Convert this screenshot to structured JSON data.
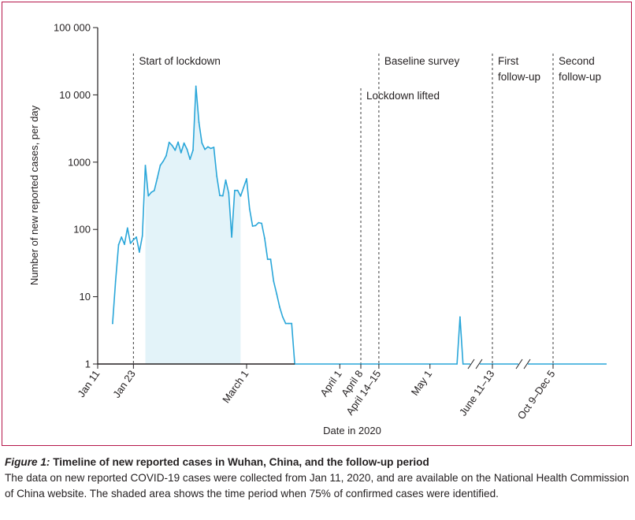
{
  "chart_data": {
    "type": "area",
    "xlabel": "Date in 2020",
    "ylabel": "Number of new reported cases, per day",
    "y_scale": "log",
    "ylim": [
      1,
      100000
    ],
    "y_ticks": [
      {
        "value": 1,
        "label": "1"
      },
      {
        "value": 10,
        "label": "10"
      },
      {
        "value": 100,
        "label": "100"
      },
      {
        "value": 1000,
        "label": "1000"
      },
      {
        "value": 10000,
        "label": "10 000"
      },
      {
        "value": 100000,
        "label": "100 000"
      }
    ],
    "x_ticks": [
      {
        "date": "2020-01-11",
        "label": "Jan 11"
      },
      {
        "date": "2020-01-23",
        "label": "Jan 23"
      },
      {
        "date": "2020-03-01",
        "label": "March 1"
      },
      {
        "date": "2020-04-01",
        "label": "April 1"
      },
      {
        "date": "2020-04-08",
        "label": "April 8"
      },
      {
        "date": "2020-04-14",
        "label": "April 14–15"
      },
      {
        "date": "2020-05-01",
        "label": "May 1"
      },
      {
        "date": "2020-06-11",
        "label": "June 11–13"
      },
      {
        "date": "2020-10-09",
        "label": "Oct 9–Dec 5"
      }
    ],
    "axis_breaks": [
      "2020-05-16",
      "2020-06-30"
    ],
    "shaded_period": {
      "start": "2020-01-27",
      "end": "2020-02-28",
      "meaning": "75% of confirmed cases identified"
    },
    "annotations": [
      {
        "date": "2020-01-23",
        "lines": [
          "Start of lockdown"
        ]
      },
      {
        "date": "2020-04-08",
        "lines": [
          "Lockdown lifted"
        ]
      },
      {
        "date": "2020-04-14",
        "lines": [
          "Baseline survey"
        ]
      },
      {
        "date": "2020-06-11",
        "lines": [
          "First",
          "follow-up"
        ]
      },
      {
        "date": "2020-10-09",
        "lines": [
          "Second",
          "follow-up"
        ]
      }
    ],
    "series": [
      {
        "color": "#29a6d9",
        "fill_color": "#e3f3f9",
        "points": [
          [
            "2020-01-16",
            4
          ],
          [
            "2020-01-17",
            17
          ],
          [
            "2020-01-18",
            59
          ],
          [
            "2020-01-19",
            77
          ],
          [
            "2020-01-20",
            60
          ],
          [
            "2020-01-21",
            105
          ],
          [
            "2020-01-22",
            62
          ],
          [
            "2020-01-23",
            70
          ],
          [
            "2020-01-24",
            77
          ],
          [
            "2020-01-25",
            46
          ],
          [
            "2020-01-26",
            80
          ],
          [
            "2020-01-27",
            892
          ],
          [
            "2020-01-28",
            315
          ],
          [
            "2020-01-29",
            356
          ],
          [
            "2020-01-30",
            378
          ],
          [
            "2020-01-31",
            576
          ],
          [
            "2020-02-01",
            894
          ],
          [
            "2020-02-02",
            1033
          ],
          [
            "2020-02-03",
            1242
          ],
          [
            "2020-02-04",
            1967
          ],
          [
            "2020-02-05",
            1766
          ],
          [
            "2020-02-06",
            1501
          ],
          [
            "2020-02-07",
            1985
          ],
          [
            "2020-02-08",
            1379
          ],
          [
            "2020-02-09",
            1920
          ],
          [
            "2020-02-10",
            1552
          ],
          [
            "2020-02-11",
            1104
          ],
          [
            "2020-02-12",
            1508
          ],
          [
            "2020-02-13",
            13436
          ],
          [
            "2020-02-14",
            3910
          ],
          [
            "2020-02-15",
            1923
          ],
          [
            "2020-02-16",
            1548
          ],
          [
            "2020-02-17",
            1690
          ],
          [
            "2020-02-18",
            1600
          ],
          [
            "2020-02-19",
            1660
          ],
          [
            "2020-02-20",
            615
          ],
          [
            "2020-02-21",
            319
          ],
          [
            "2020-02-22",
            315
          ],
          [
            "2020-02-23",
            541
          ],
          [
            "2020-02-24",
            348
          ],
          [
            "2020-02-25",
            77
          ],
          [
            "2020-02-26",
            380
          ],
          [
            "2020-02-27",
            380
          ],
          [
            "2020-02-28",
            313
          ],
          [
            "2020-02-29",
            420
          ],
          [
            "2020-03-01",
            565
          ],
          [
            "2020-03-02",
            202
          ],
          [
            "2020-03-03",
            112
          ],
          [
            "2020-03-04",
            114
          ],
          [
            "2020-03-05",
            126
          ],
          [
            "2020-03-06",
            123
          ],
          [
            "2020-03-07",
            74
          ],
          [
            "2020-03-08",
            36
          ],
          [
            "2020-03-09",
            36
          ],
          [
            "2020-03-10",
            17
          ],
          [
            "2020-03-11",
            11
          ],
          [
            "2020-03-12",
            7
          ],
          [
            "2020-03-13",
            5
          ],
          [
            "2020-03-14",
            4
          ],
          [
            "2020-03-15",
            4
          ],
          [
            "2020-03-16",
            4
          ],
          [
            "2020-03-17",
            1
          ],
          [
            "2020-05-10",
            1
          ],
          [
            "2020-05-11",
            5
          ],
          [
            "2020-05-12",
            1
          ],
          [
            "2020-05-16",
            1
          ]
        ]
      }
    ]
  },
  "caption": {
    "figure_label": "Figure 1:",
    "title": "Timeline of new reported cases in Wuhan, China, and the follow-up period",
    "text": "The data on new reported COVID-19 cases were collected from Jan 11, 2020, and are available on the National Health Commission of China website. The shaded area shows the time period when 75% of confirmed cases were identified."
  }
}
